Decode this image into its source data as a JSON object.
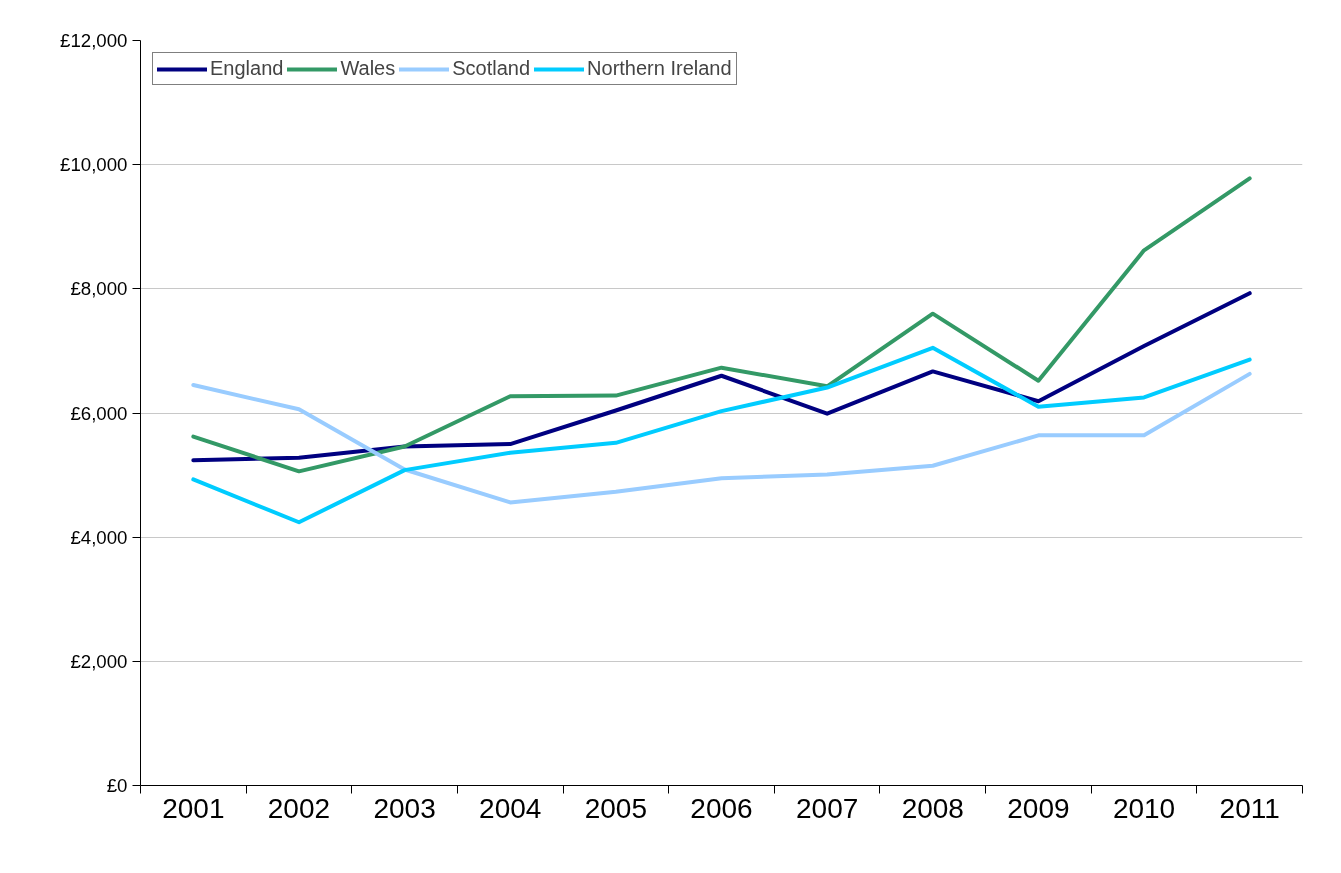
{
  "chart_data": {
    "type": "line",
    "categories": [
      "2001",
      "2002",
      "2003",
      "2004",
      "2005",
      "2006",
      "2007",
      "2008",
      "2009",
      "2010",
      "2011"
    ],
    "series": [
      {
        "name": "England",
        "color": "#000080",
        "values": [
          5240,
          5280,
          5460,
          5500,
          6040,
          6600,
          5990,
          6670,
          6190,
          7080,
          7930
        ]
      },
      {
        "name": "Wales",
        "color": "#339966",
        "values": [
          5620,
          5060,
          5460,
          6270,
          6280,
          6730,
          6430,
          7600,
          6520,
          8620,
          9780
        ]
      },
      {
        "name": "Scotland",
        "color": "#99ccff",
        "values": [
          6450,
          6060,
          5090,
          4560,
          4730,
          4950,
          5010,
          5150,
          5640,
          5640,
          6630
        ]
      },
      {
        "name": "Northern Ireland",
        "color": "#00ccff",
        "values": [
          4930,
          4240,
          5080,
          5360,
          5520,
          6030,
          6410,
          7050,
          6100,
          6250,
          6860
        ]
      }
    ],
    "ylim": [
      0,
      12000
    ],
    "yticks": [
      {
        "value": 0,
        "label": "£0"
      },
      {
        "value": 2000,
        "label": "£2,000"
      },
      {
        "value": 4000,
        "label": "£4,000"
      },
      {
        "value": 6000,
        "label": "£6,000"
      },
      {
        "value": 8000,
        "label": "£8,000"
      },
      {
        "value": 10000,
        "label": "£10,000"
      },
      {
        "value": 12000,
        "label": "£12,000"
      }
    ],
    "grid": "y",
    "legend": "top left",
    "marker": "none",
    "line_style": "solid"
  }
}
